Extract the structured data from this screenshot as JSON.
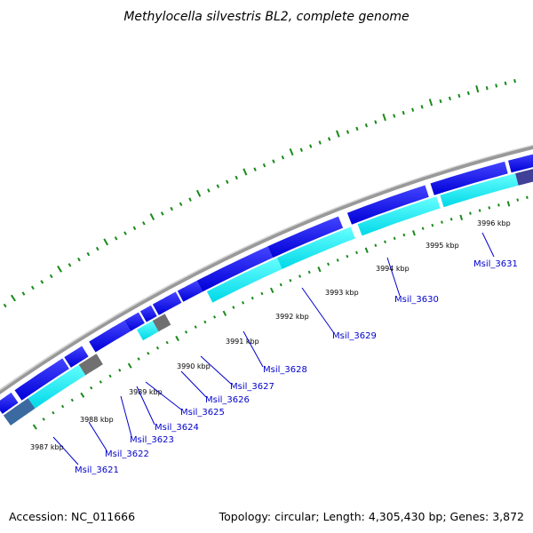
{
  "title": "Methylocella silvestris BL2, complete genome",
  "accession": "Accession: NC_011666",
  "genome_info": "Topology: circular; Length: 4,305,430 bp; Genes: 3,872",
  "colors": {
    "backbone": "#888888",
    "cds": "#0000ee",
    "cds_light": "#00e8f0",
    "cds_dark": "#404098",
    "other_feature": "#707070",
    "label": "#0000cc",
    "gc_ticks": "#1a8a1a"
  },
  "scale_ticks": [
    "3987 kbp",
    "3988 kbp",
    "3989 kbp",
    "3990 kbp",
    "3991 kbp",
    "3992 kbp",
    "3993 kbp",
    "3994 kbp",
    "3995 kbp",
    "3996 kbp"
  ],
  "gene_labels": [
    "Msil_3621",
    "Msil_3622",
    "Msil_3623",
    "Msil_3624",
    "Msil_3625",
    "Msil_3626",
    "Msil_3627",
    "Msil_3628",
    "Msil_3629",
    "Msil_3630",
    "Msil_3631"
  ]
}
